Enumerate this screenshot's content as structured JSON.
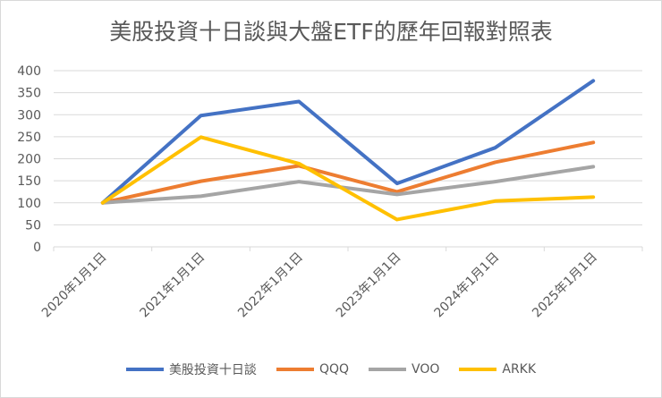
{
  "chart_data": {
    "type": "line",
    "title": "美股投資十日談與大盤ETF的歷年回報對照表",
    "categories": [
      "2020年1月1日",
      "2021年1月1日",
      "2022年1月1日",
      "2023年1月1日",
      "2024年1月1日",
      "2025年1月1日"
    ],
    "ylim": [
      0,
      400
    ],
    "yticks": [
      0,
      50,
      100,
      150,
      200,
      250,
      300,
      350,
      400
    ],
    "grid": true,
    "legend_position": "bottom",
    "series": [
      {
        "name": "美股投資十日談",
        "color": "#4472C4",
        "values": [
          100,
          298,
          330,
          144,
          225,
          377
        ]
      },
      {
        "name": "QQQ",
        "color": "#ED7D31",
        "values": [
          100,
          149,
          184,
          125,
          192,
          237
        ]
      },
      {
        "name": "VOO",
        "color": "#A5A5A5",
        "values": [
          100,
          115,
          148,
          119,
          148,
          182
        ]
      },
      {
        "name": "ARKK",
        "color": "#FFC000",
        "values": [
          100,
          249,
          189,
          62,
          104,
          113
        ]
      }
    ]
  }
}
